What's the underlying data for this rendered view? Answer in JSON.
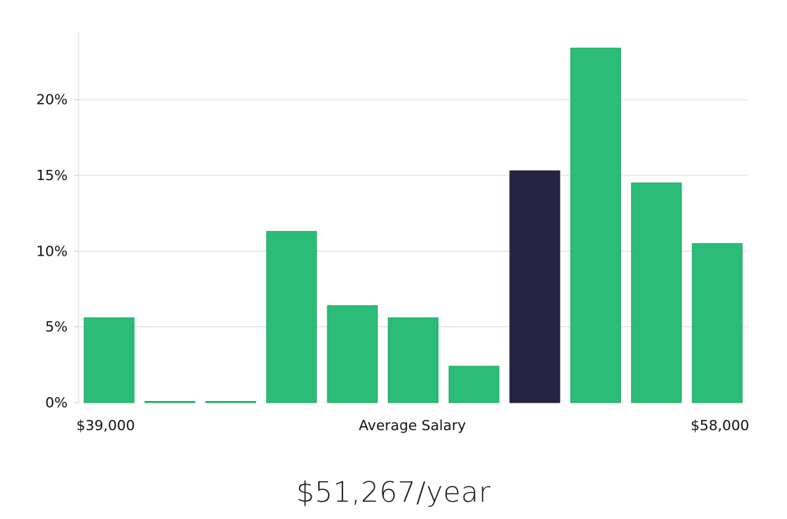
{
  "chart_data": {
    "type": "bar",
    "categories": [
      "1",
      "2",
      "3",
      "4",
      "5",
      "6",
      "7",
      "8",
      "9",
      "10",
      "11"
    ],
    "values": [
      5.6,
      0.0,
      0.0,
      11.3,
      6.4,
      5.6,
      2.4,
      15.3,
      23.4,
      14.5,
      10.5
    ],
    "highlight_index": 7,
    "ylim": [
      0,
      24.5
    ],
    "yticks": [
      0,
      5,
      10,
      15,
      20
    ],
    "ytick_labels": [
      "0%",
      "5%",
      "10%",
      "15%",
      "20%"
    ],
    "x_min_label": "$39,000",
    "x_max_label": "$58,000",
    "xlabel": "Average Salary",
    "grid": true,
    "colors": {
      "bar": "#2bbd77",
      "highlight": "#262444",
      "grid": "#dddddd",
      "axis": "#cccccc"
    }
  },
  "salary_text": "$51,267/year"
}
